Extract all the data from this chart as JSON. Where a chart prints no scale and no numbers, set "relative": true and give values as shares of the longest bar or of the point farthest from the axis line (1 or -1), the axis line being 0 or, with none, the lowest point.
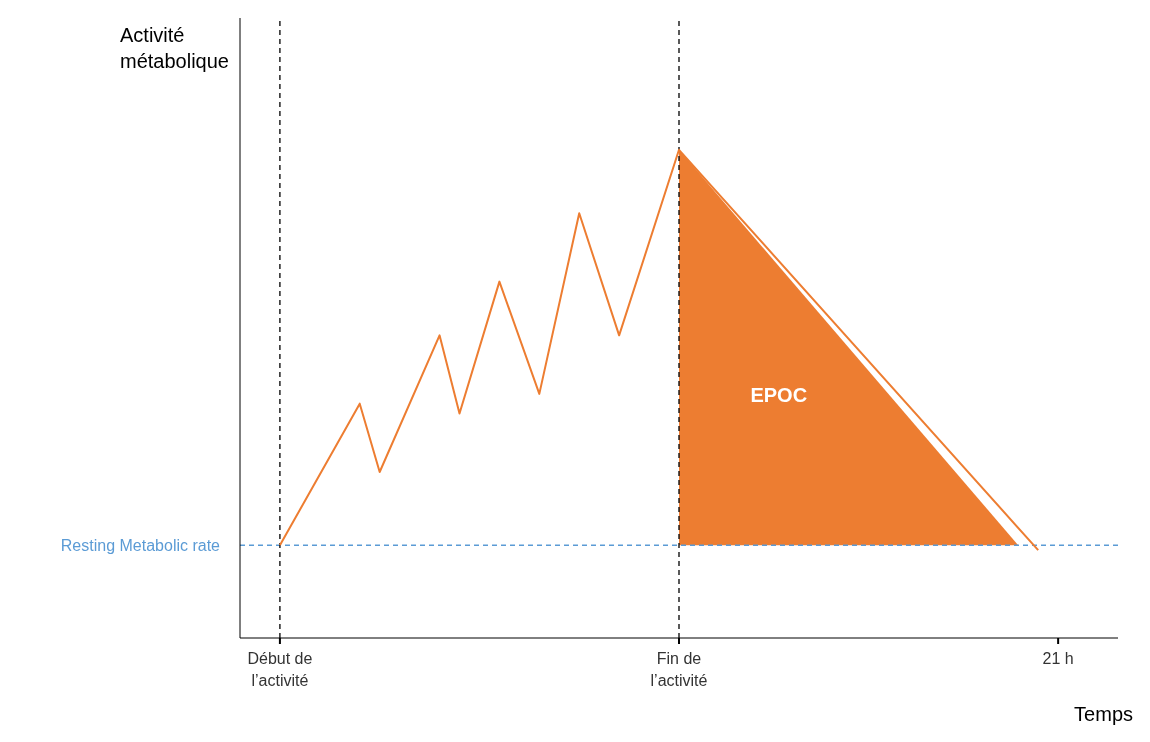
{
  "chart_data": {
    "type": "line",
    "relative": true,
    "xlabel": "Temps",
    "ylabel": "Activité métabolique",
    "categories": [
      null,
      null,
      "Début de l’activité",
      null,
      null,
      null,
      null,
      null,
      null,
      null,
      null,
      null,
      null,
      null,
      null,
      null,
      null,
      null,
      null,
      null,
      null,
      null,
      "Fin de l’activité",
      null,
      null,
      null,
      null,
      null,
      null,
      null,
      null,
      null,
      null,
      null,
      null,
      null,
      null,
      null,
      null,
      null,
      null,
      "21 h",
      null,
      null,
      null
    ],
    "series": [
      {
        "color": "#ed7d31",
        "values": [
          null,
          null,
          0.19,
          null,
          null,
          null,
          0.48,
          0.34,
          null,
          null,
          0.62,
          0.46,
          null,
          0.73,
          null,
          0.5,
          null,
          0.87,
          null,
          0.62,
          null,
          null,
          1,
          null,
          null,
          null,
          null,
          null,
          null,
          null,
          null,
          null,
          null,
          null,
          null,
          null,
          null,
          null,
          null,
          null,
          0.18,
          null,
          null,
          null,
          null
        ]
      },
      {
        "type": "area",
        "color": "#ed7d31",
        "values": [
          null,
          null,
          null,
          null,
          null,
          null,
          null,
          null,
          null,
          null,
          null,
          null,
          null,
          null,
          null,
          null,
          null,
          null,
          null,
          null,
          null,
          null,
          1,
          null,
          null,
          null,
          null,
          null,
          null,
          null,
          null,
          null,
          null,
          null,
          null,
          null,
          null,
          null,
          null,
          0.19,
          null,
          null,
          null,
          null,
          null
        ]
      }
    ],
    "ref_lines": [
      {
        "axis": "y",
        "value": 0.19,
        "label": "Resting Metabolic rate",
        "color": "#5b9bd5",
        "line_style": "dashed"
      },
      {
        "axis": "x",
        "value": "Début de l’activité",
        "color": "#000000",
        "line_style": "dashed"
      },
      {
        "axis": "x",
        "value": "Fin de l’activité",
        "color": "#000000",
        "line_style": "dashed"
      }
    ],
    "annotations": [
      "EPOC"
    ]
  }
}
